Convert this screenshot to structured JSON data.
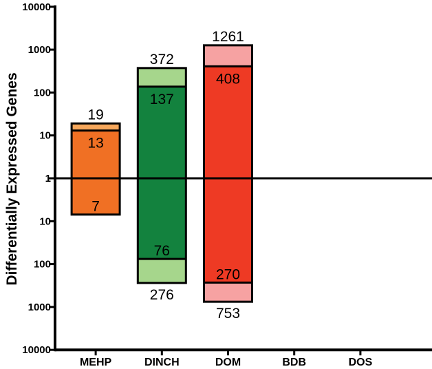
{
  "chart_data": {
    "type": "bar",
    "ylabel": "Differentially Expressed Genes",
    "yscale": "log",
    "ylim_up": [
      1,
      10000
    ],
    "ylim_down": [
      1,
      10000
    ],
    "yticks_up": [
      "1",
      "10",
      "100",
      "1000",
      "10000"
    ],
    "yticks_down": [
      "10",
      "100",
      "1000",
      "10000"
    ],
    "categories": [
      "MEHP",
      "DINCH",
      "DOM",
      "BDB",
      "DOS"
    ],
    "series": [
      {
        "category": "MEHP",
        "up_total": 19,
        "up_inner": 13,
        "down_total": 7,
        "down_inner": null,
        "up_labels": [
          "19",
          "13"
        ],
        "down_labels": [
          "7"
        ]
      },
      {
        "category": "DINCH",
        "up_total": 372,
        "up_inner": 137,
        "down_total": 276,
        "down_inner": 76,
        "up_labels": [
          "372",
          "137"
        ],
        "down_labels": [
          "76",
          "276"
        ]
      },
      {
        "category": "DOM",
        "up_total": 1261,
        "up_inner": 408,
        "down_total": 753,
        "down_inner": 270,
        "up_labels": [
          "1261",
          "408"
        ],
        "down_labels": [
          "270",
          "753"
        ]
      },
      {
        "category": "BDB",
        "up_total": null,
        "up_inner": null,
        "down_total": null,
        "down_inner": null,
        "up_labels": [],
        "down_labels": []
      },
      {
        "category": "DOS",
        "up_total": null,
        "up_inner": null,
        "down_total": null,
        "down_inner": null,
        "up_labels": [],
        "down_labels": []
      }
    ],
    "colors": {
      "MEHP": {
        "outer": "#f7a85c",
        "inner": "#f07024"
      },
      "DINCH": {
        "outer": "#a6d68c",
        "inner": "#13823e"
      },
      "DOM": {
        "outer": "#f6a2a2",
        "inner": "#ee3a24"
      }
    },
    "grid": false,
    "legend": "none"
  }
}
